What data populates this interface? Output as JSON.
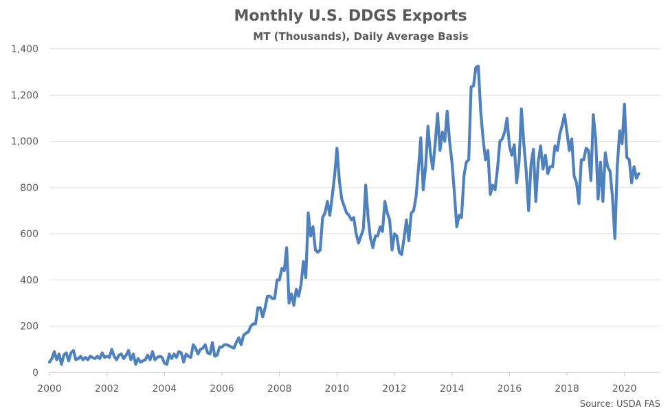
{
  "chart_data": {
    "type": "line",
    "title": "Monthly U.S. DDGS Exports",
    "subtitle": "MT (Thousands), Daily Average Basis",
    "source": "Source: USDA FAS",
    "xlabel": "",
    "ylabel": "",
    "xlim": [
      2000,
      2021.25
    ],
    "ylim": [
      0,
      1400
    ],
    "x_ticks": [
      "2000",
      "2002",
      "2004",
      "2006",
      "2008",
      "2010",
      "2012",
      "2014",
      "2016",
      "2018",
      "2020"
    ],
    "y_ticks": [
      "0",
      "200",
      "400",
      "600",
      "800",
      "1,000",
      "1,200",
      "1,400"
    ],
    "grid": "horizontal",
    "legend": "none",
    "line_color": "#4f81bd",
    "series": [
      {
        "x_start": 2000,
        "interval_months": 1,
        "values": [
          45,
          60,
          90,
          55,
          80,
          35,
          75,
          85,
          50,
          85,
          95,
          55,
          60,
          70,
          55,
          65,
          55,
          70,
          65,
          60,
          70,
          60,
          85,
          65,
          70,
          65,
          100,
          70,
          55,
          75,
          80,
          60,
          75,
          95,
          55,
          80,
          35,
          60,
          45,
          50,
          55,
          75,
          55,
          90,
          55,
          65,
          70,
          65,
          40,
          35,
          80,
          60,
          80,
          65,
          90,
          85,
          45,
          80,
          70,
          65,
          120,
          105,
          80,
          100,
          105,
          120,
          85,
          80,
          130,
          70,
          75,
          110,
          110,
          120,
          120,
          115,
          110,
          105,
          130,
          150,
          120,
          160,
          170,
          175,
          200,
          210,
          210,
          280,
          280,
          240,
          280,
          330,
          330,
          320,
          320,
          400,
          400,
          450,
          440,
          540,
          300,
          340,
          290,
          360,
          330,
          380,
          480,
          410,
          690,
          590,
          630,
          530,
          520,
          530,
          670,
          690,
          740,
          680,
          760,
          850,
          970,
          830,
          750,
          720,
          690,
          680,
          660,
          670,
          600,
          560,
          590,
          620,
          810,
          670,
          580,
          540,
          590,
          590,
          630,
          610,
          740,
          690,
          660,
          530,
          600,
          590,
          520,
          510,
          580,
          660,
          570,
          690,
          700,
          760,
          880,
          1015,
          790,
          890,
          1065,
          950,
          880,
          990,
          1120,
          960,
          1040,
          1000,
          1130,
          1000,
          910,
          780,
          630,
          680,
          670,
          850,
          910,
          920,
          1235,
          1240,
          1320,
          1325,
          1130,
          1010,
          920,
          960,
          770,
          810,
          790,
          880,
          1000,
          1010,
          1040,
          1100,
          980,
          940,
          985,
          820,
          910,
          1140,
          990,
          870,
          700,
          900,
          965,
          740,
          910,
          980,
          880,
          940,
          860,
          890,
          890,
          980,
          960,
          1030,
          1070,
          1115,
          1040,
          960,
          1010,
          850,
          820,
          730,
          920,
          920,
          970,
          960,
          830,
          1115,
          1010,
          750,
          910,
          740,
          950,
          890,
          870,
          760,
          580,
          890,
          1045,
          990,
          1160,
          930,
          920,
          820,
          890,
          840,
          860
        ]
      }
    ]
  }
}
